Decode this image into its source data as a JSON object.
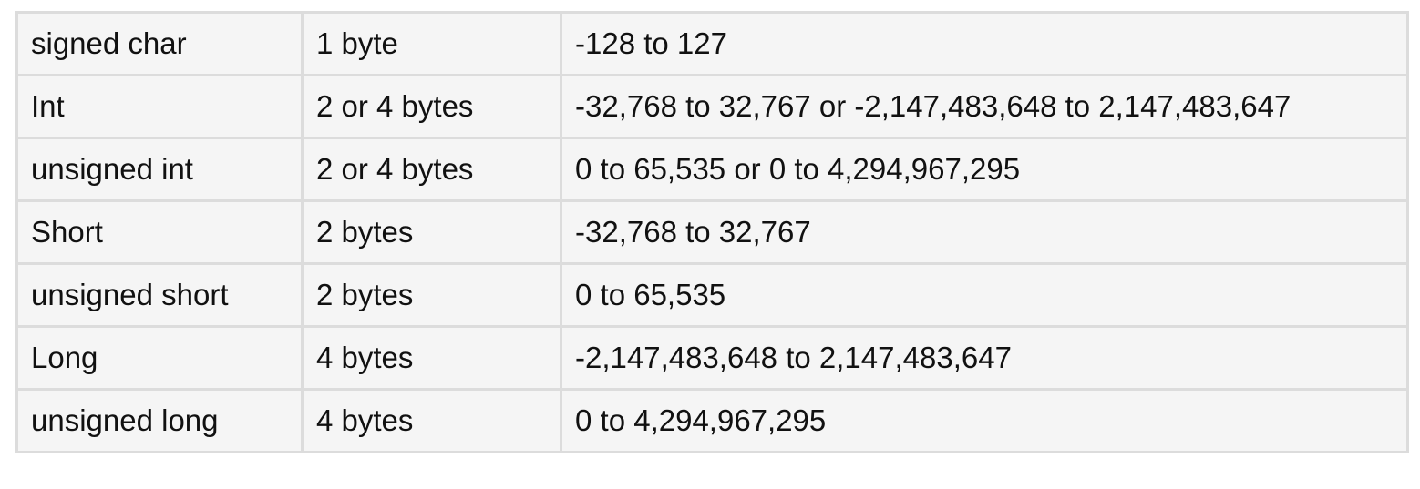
{
  "table": {
    "rows": [
      {
        "type": "signed char",
        "size": "1 byte",
        "range": "-128 to 127"
      },
      {
        "type": "Int",
        "size": "2 or 4 bytes",
        "range": "-32,768 to 32,767 or -2,147,483,648 to 2,147,483,647"
      },
      {
        "type": "unsigned int",
        "size": "2 or 4 bytes",
        "range": "0 to 65,535 or 0 to 4,294,967,295"
      },
      {
        "type": "Short",
        "size": "2 bytes",
        "range": "-32,768 to 32,767"
      },
      {
        "type": "unsigned short",
        "size": "2 bytes",
        "range": "0 to 65,535"
      },
      {
        "type": "Long",
        "size": "4 bytes",
        "range": "-2,147,483,648 to 2,147,483,647"
      },
      {
        "type": "unsigned long",
        "size": "4 bytes",
        "range": "0 to 4,294,967,295"
      }
    ]
  }
}
